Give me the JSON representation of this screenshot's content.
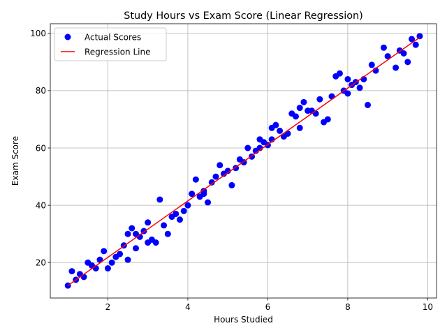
{
  "chart_data": {
    "type": "scatter",
    "title": "Study Hours vs Exam Score (Linear Regression)",
    "xlabel": "Hours Studied",
    "ylabel": "Exam Score",
    "xlim": [
      0.56,
      10.22
    ],
    "ylim": [
      7.65,
      103.35
    ],
    "xticks": [
      2,
      4,
      6,
      8,
      10
    ],
    "yticks": [
      20,
      40,
      60,
      80,
      100
    ],
    "grid": true,
    "legend_position": "upper-left",
    "series": [
      {
        "name": "Actual Scores",
        "kind": "scatter",
        "color": "#0000ff",
        "points": [
          [
            1.0,
            12
          ],
          [
            1.1,
            17
          ],
          [
            1.2,
            14
          ],
          [
            1.3,
            16
          ],
          [
            1.4,
            15
          ],
          [
            1.5,
            20
          ],
          [
            1.6,
            19
          ],
          [
            1.7,
            18
          ],
          [
            1.8,
            21
          ],
          [
            1.9,
            24
          ],
          [
            2.0,
            18
          ],
          [
            2.1,
            20
          ],
          [
            2.2,
            22
          ],
          [
            2.3,
            23
          ],
          [
            2.4,
            26
          ],
          [
            2.5,
            21
          ],
          [
            2.5,
            30
          ],
          [
            2.6,
            32
          ],
          [
            2.7,
            25
          ],
          [
            2.7,
            30
          ],
          [
            2.8,
            29
          ],
          [
            2.9,
            31
          ],
          [
            3.0,
            34
          ],
          [
            3.0,
            27
          ],
          [
            3.1,
            28
          ],
          [
            3.2,
            27
          ],
          [
            3.3,
            42
          ],
          [
            3.4,
            33
          ],
          [
            3.5,
            30
          ],
          [
            3.6,
            36
          ],
          [
            3.7,
            37
          ],
          [
            3.8,
            35
          ],
          [
            3.9,
            38
          ],
          [
            4.0,
            40
          ],
          [
            4.1,
            44
          ],
          [
            4.2,
            49
          ],
          [
            4.3,
            43
          ],
          [
            4.4,
            44
          ],
          [
            4.4,
            45
          ],
          [
            4.5,
            41
          ],
          [
            4.6,
            48
          ],
          [
            4.7,
            50
          ],
          [
            4.8,
            54
          ],
          [
            4.9,
            51
          ],
          [
            5.0,
            52
          ],
          [
            5.1,
            47
          ],
          [
            5.2,
            53
          ],
          [
            5.3,
            56
          ],
          [
            5.4,
            55
          ],
          [
            5.5,
            60
          ],
          [
            5.6,
            57
          ],
          [
            5.7,
            59
          ],
          [
            5.8,
            60
          ],
          [
            5.8,
            63
          ],
          [
            5.9,
            62
          ],
          [
            6.0,
            61
          ],
          [
            6.1,
            63
          ],
          [
            6.1,
            67
          ],
          [
            6.2,
            68
          ],
          [
            6.3,
            66
          ],
          [
            6.4,
            64
          ],
          [
            6.5,
            65
          ],
          [
            6.6,
            72
          ],
          [
            6.7,
            71
          ],
          [
            6.8,
            74
          ],
          [
            6.8,
            67
          ],
          [
            6.9,
            76
          ],
          [
            7.0,
            73
          ],
          [
            7.1,
            73
          ],
          [
            7.2,
            72
          ],
          [
            7.3,
            77
          ],
          [
            7.4,
            69
          ],
          [
            7.5,
            70
          ],
          [
            7.6,
            78
          ],
          [
            7.7,
            85
          ],
          [
            7.8,
            86
          ],
          [
            7.9,
            80
          ],
          [
            8.0,
            84
          ],
          [
            8.0,
            79
          ],
          [
            8.1,
            82
          ],
          [
            8.2,
            83
          ],
          [
            8.3,
            81
          ],
          [
            8.4,
            84
          ],
          [
            8.5,
            75
          ],
          [
            8.6,
            89
          ],
          [
            8.7,
            87
          ],
          [
            8.9,
            95
          ],
          [
            9.0,
            92
          ],
          [
            9.2,
            88
          ],
          [
            9.3,
            94
          ],
          [
            9.4,
            93
          ],
          [
            9.5,
            90
          ],
          [
            9.6,
            98
          ],
          [
            9.7,
            96
          ],
          [
            9.8,
            99
          ]
        ]
      },
      {
        "name": "Regression Line",
        "kind": "line",
        "color": "#ff0000",
        "x": [
          1.0,
          9.8
        ],
        "y": [
          12.0,
          98.6
        ]
      }
    ]
  }
}
